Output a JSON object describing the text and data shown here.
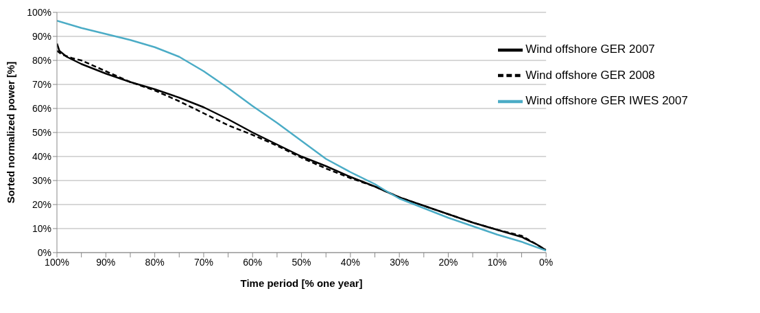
{
  "chart_data": {
    "type": "line",
    "xlabel": "Time period [% one year]",
    "ylabel": "Sorted normalized power  [%]",
    "xlim": [
      100,
      0
    ],
    "xticks": [
      {
        "value": 100,
        "label": "100%"
      },
      {
        "value": 95,
        "label": null
      },
      {
        "value": 90,
        "label": "90%"
      },
      {
        "value": 85,
        "label": null
      },
      {
        "value": 80,
        "label": "80%"
      },
      {
        "value": 75,
        "label": null
      },
      {
        "value": 70,
        "label": "70%"
      },
      {
        "value": 65,
        "label": null
      },
      {
        "value": 60,
        "label": "60%"
      },
      {
        "value": 55,
        "label": null
      },
      {
        "value": 50,
        "label": "50%"
      },
      {
        "value": 45,
        "label": null
      },
      {
        "value": 40,
        "label": "40%"
      },
      {
        "value": 35,
        "label": null
      },
      {
        "value": 30,
        "label": "30%"
      },
      {
        "value": 25,
        "label": null
      },
      {
        "value": 20,
        "label": "20%"
      },
      {
        "value": 15,
        "label": null
      },
      {
        "value": 10,
        "label": "10%"
      },
      {
        "value": 5,
        "label": null
      },
      {
        "value": 0,
        "label": "0%"
      }
    ],
    "ylim": [
      0,
      100
    ],
    "yticks": [
      {
        "value": 0,
        "label": "0%"
      },
      {
        "value": 10,
        "label": "10%"
      },
      {
        "value": 20,
        "label": "20%"
      },
      {
        "value": 30,
        "label": "30%"
      },
      {
        "value": 40,
        "label": "40%"
      },
      {
        "value": 50,
        "label": "50%"
      },
      {
        "value": 60,
        "label": "60%"
      },
      {
        "value": 70,
        "label": "70%"
      },
      {
        "value": 80,
        "label": "80%"
      },
      {
        "value": 90,
        "label": "90%"
      },
      {
        "value": 100,
        "label": "100%"
      }
    ],
    "grid": "y",
    "legend": "top right",
    "marker": "none",
    "series": [
      {
        "name": "Wind offshore GER 2008",
        "color": "#000000",
        "line_style": "dashed",
        "x": [
          100,
          99,
          97,
          95,
          90,
          85,
          80,
          75,
          70,
          65,
          60,
          55,
          50,
          45,
          40,
          35,
          30,
          25,
          20,
          15,
          10,
          5,
          2,
          0
        ],
        "values": [
          84,
          82.5,
          81,
          80,
          75.5,
          71,
          67.5,
          63,
          58,
          53,
          49,
          44.5,
          39.5,
          35,
          31,
          27.5,
          23,
          19.5,
          16,
          12.5,
          9.5,
          7,
          3.5,
          1
        ]
      },
      {
        "name": "Wind offshore GER 2007",
        "color": "#000000",
        "line_style": "solid",
        "x": [
          100,
          99.5,
          98,
          95,
          90,
          85,
          80,
          75,
          70,
          65,
          60,
          55,
          50,
          45,
          40,
          35,
          30,
          25,
          20,
          15,
          10,
          5,
          2,
          0
        ],
        "values": [
          87,
          84,
          81.5,
          78.5,
          74.5,
          71,
          68,
          64.5,
          60.5,
          55.5,
          50,
          45,
          40,
          36,
          31.5,
          27.5,
          23,
          19.5,
          16,
          12.5,
          9.5,
          6.5,
          3.5,
          1
        ]
      },
      {
        "name": "Wind offshore GER IWES 2007",
        "color": "#4bacc6",
        "line_style": "solid",
        "x": [
          100,
          95,
          90,
          85,
          80,
          75,
          70,
          65,
          60,
          55,
          50,
          45,
          40,
          35,
          33,
          30,
          25,
          20,
          15,
          10,
          5,
          0
        ],
        "values": [
          96.5,
          93.5,
          91,
          88.5,
          85.5,
          81.5,
          75.5,
          68.5,
          61,
          54,
          46.5,
          39,
          33.5,
          28.5,
          26,
          22.5,
          18.5,
          14.5,
          11,
          7.5,
          4.5,
          0.8
        ]
      }
    ]
  }
}
